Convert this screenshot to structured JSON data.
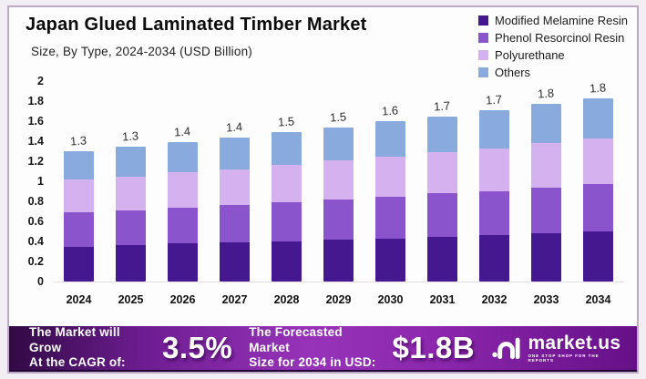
{
  "chart_data": {
    "type": "bar",
    "stacked": true,
    "title": "Japan Glued Laminated Timber Market",
    "subtitle": "Size, By Type, 2024-2034 (USD Billion)",
    "categories": [
      "2024",
      "2025",
      "2026",
      "2027",
      "2028",
      "2029",
      "2030",
      "2031",
      "2032",
      "2033",
      "2034"
    ],
    "series": [
      {
        "name": "Modified Melamine Resin",
        "color": "#45188f",
        "values": [
          0.35,
          0.36,
          0.38,
          0.39,
          0.4,
          0.42,
          0.43,
          0.45,
          0.46,
          0.48,
          0.5
        ]
      },
      {
        "name": "Phenol Resorcinol Resin",
        "color": "#8a55cc",
        "values": [
          0.34,
          0.35,
          0.36,
          0.37,
          0.39,
          0.4,
          0.42,
          0.43,
          0.44,
          0.46,
          0.47
        ]
      },
      {
        "name": "Polyurethane",
        "color": "#d5b2ef",
        "values": [
          0.33,
          0.34,
          0.35,
          0.36,
          0.37,
          0.39,
          0.4,
          0.41,
          0.43,
          0.44,
          0.46
        ]
      },
      {
        "name": "Others",
        "color": "#88aadc",
        "values": [
          0.28,
          0.3,
          0.3,
          0.32,
          0.33,
          0.33,
          0.35,
          0.36,
          0.38,
          0.39,
          0.4
        ]
      }
    ],
    "bar_total_labels": [
      "1.3",
      "1.3",
      "1.4",
      "1.4",
      "1.5",
      "1.5",
      "1.6",
      "1.7",
      "1.7",
      "1.8",
      "1.8"
    ],
    "yticks": [
      "2",
      "1.8",
      "1.6",
      "1.4",
      "1.2",
      "1",
      "0.8",
      "0.6",
      "0.4",
      "0.2",
      "0"
    ],
    "ylim": [
      0,
      2
    ],
    "grid": false,
    "legend_position": "top-right"
  },
  "footer": {
    "cagr_label_line1": "The Market will Grow",
    "cagr_label_line2": "At the CAGR of:",
    "cagr_value": "3.5%",
    "forecast_label_line1": "The Forecasted Market",
    "forecast_label_line2": "Size for 2034 in USD:",
    "forecast_value": "$1.8B",
    "brand_name": "market.us",
    "brand_tagline": "ONE STOP SHOP FOR THE REPORTS"
  },
  "colors": {
    "banner_gradient_start": "#310a44",
    "banner_gradient_mid": "#9733b9",
    "banner_gradient_end": "#661087",
    "card_border": "#bda9c6"
  }
}
